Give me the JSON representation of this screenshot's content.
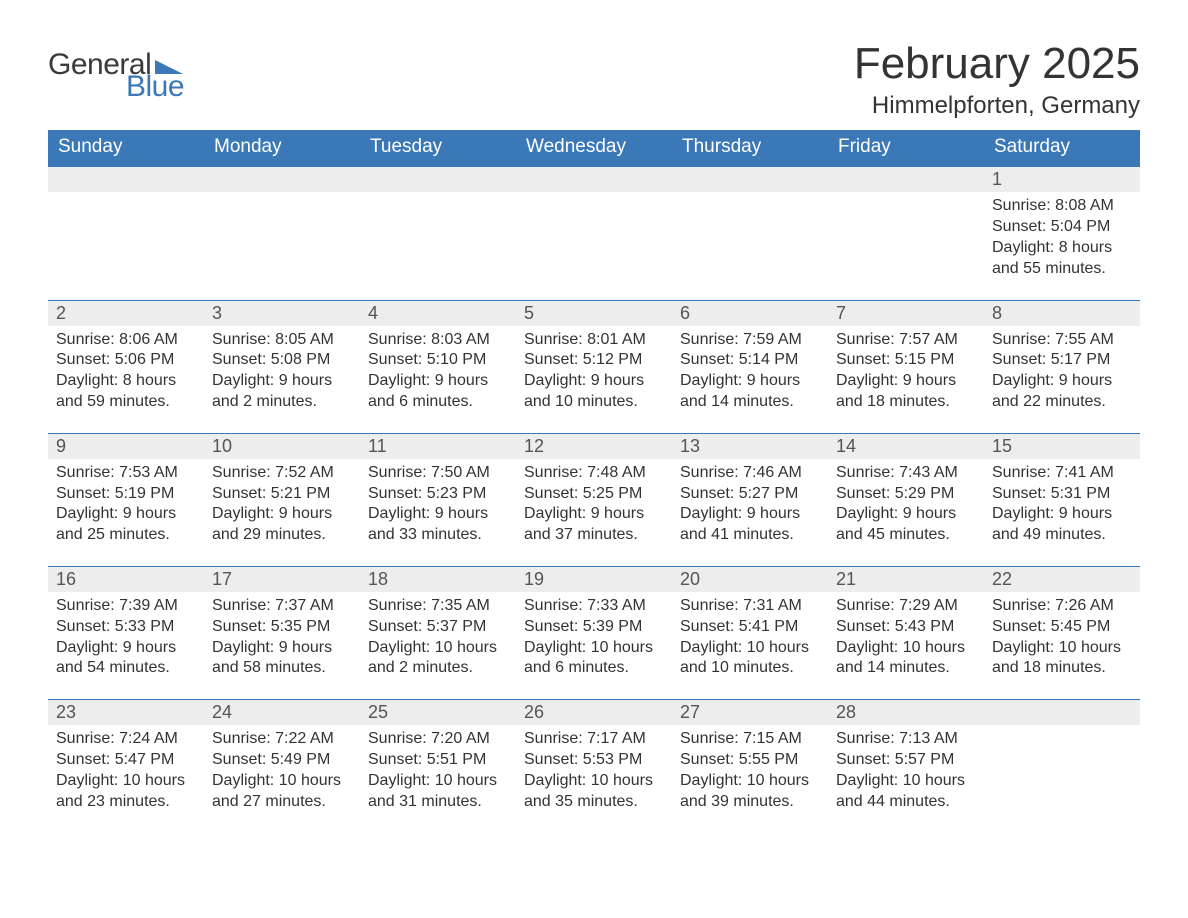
{
  "brand": {
    "word1": "General",
    "word2": "Blue",
    "word1_color": "#3a3a3a",
    "word2_color": "#3b78b8",
    "triangle_color": "#3b78b8"
  },
  "title": "February 2025",
  "location": "Himmelpforten, Germany",
  "colors": {
    "header_bg": "#3b78b8",
    "header_text": "#ffffff",
    "daynum_bg": "#ededed",
    "row_border": "#3b78b8",
    "body_text": "#333333",
    "page_bg": "#ffffff"
  },
  "fonts": {
    "title_size_pt": 33,
    "location_size_pt": 18,
    "weekday_size_pt": 14,
    "daynum_size_pt": 14,
    "body_size_pt": 12
  },
  "layout": {
    "columns": 7,
    "rows": 5,
    "first_day_column_index": 6
  },
  "weekdays": [
    "Sunday",
    "Monday",
    "Tuesday",
    "Wednesday",
    "Thursday",
    "Friday",
    "Saturday"
  ],
  "weeks": [
    [
      null,
      null,
      null,
      null,
      null,
      null,
      {
        "n": "1",
        "sunrise": "Sunrise: 8:08 AM",
        "sunset": "Sunset: 5:04 PM",
        "daylight": "Daylight: 8 hours and 55 minutes."
      }
    ],
    [
      {
        "n": "2",
        "sunrise": "Sunrise: 8:06 AM",
        "sunset": "Sunset: 5:06 PM",
        "daylight": "Daylight: 8 hours and 59 minutes."
      },
      {
        "n": "3",
        "sunrise": "Sunrise: 8:05 AM",
        "sunset": "Sunset: 5:08 PM",
        "daylight": "Daylight: 9 hours and 2 minutes."
      },
      {
        "n": "4",
        "sunrise": "Sunrise: 8:03 AM",
        "sunset": "Sunset: 5:10 PM",
        "daylight": "Daylight: 9 hours and 6 minutes."
      },
      {
        "n": "5",
        "sunrise": "Sunrise: 8:01 AM",
        "sunset": "Sunset: 5:12 PM",
        "daylight": "Daylight: 9 hours and 10 minutes."
      },
      {
        "n": "6",
        "sunrise": "Sunrise: 7:59 AM",
        "sunset": "Sunset: 5:14 PM",
        "daylight": "Daylight: 9 hours and 14 minutes."
      },
      {
        "n": "7",
        "sunrise": "Sunrise: 7:57 AM",
        "sunset": "Sunset: 5:15 PM",
        "daylight": "Daylight: 9 hours and 18 minutes."
      },
      {
        "n": "8",
        "sunrise": "Sunrise: 7:55 AM",
        "sunset": "Sunset: 5:17 PM",
        "daylight": "Daylight: 9 hours and 22 minutes."
      }
    ],
    [
      {
        "n": "9",
        "sunrise": "Sunrise: 7:53 AM",
        "sunset": "Sunset: 5:19 PM",
        "daylight": "Daylight: 9 hours and 25 minutes."
      },
      {
        "n": "10",
        "sunrise": "Sunrise: 7:52 AM",
        "sunset": "Sunset: 5:21 PM",
        "daylight": "Daylight: 9 hours and 29 minutes."
      },
      {
        "n": "11",
        "sunrise": "Sunrise: 7:50 AM",
        "sunset": "Sunset: 5:23 PM",
        "daylight": "Daylight: 9 hours and 33 minutes."
      },
      {
        "n": "12",
        "sunrise": "Sunrise: 7:48 AM",
        "sunset": "Sunset: 5:25 PM",
        "daylight": "Daylight: 9 hours and 37 minutes."
      },
      {
        "n": "13",
        "sunrise": "Sunrise: 7:46 AM",
        "sunset": "Sunset: 5:27 PM",
        "daylight": "Daylight: 9 hours and 41 minutes."
      },
      {
        "n": "14",
        "sunrise": "Sunrise: 7:43 AM",
        "sunset": "Sunset: 5:29 PM",
        "daylight": "Daylight: 9 hours and 45 minutes."
      },
      {
        "n": "15",
        "sunrise": "Sunrise: 7:41 AM",
        "sunset": "Sunset: 5:31 PM",
        "daylight": "Daylight: 9 hours and 49 minutes."
      }
    ],
    [
      {
        "n": "16",
        "sunrise": "Sunrise: 7:39 AM",
        "sunset": "Sunset: 5:33 PM",
        "daylight": "Daylight: 9 hours and 54 minutes."
      },
      {
        "n": "17",
        "sunrise": "Sunrise: 7:37 AM",
        "sunset": "Sunset: 5:35 PM",
        "daylight": "Daylight: 9 hours and 58 minutes."
      },
      {
        "n": "18",
        "sunrise": "Sunrise: 7:35 AM",
        "sunset": "Sunset: 5:37 PM",
        "daylight": "Daylight: 10 hours and 2 minutes."
      },
      {
        "n": "19",
        "sunrise": "Sunrise: 7:33 AM",
        "sunset": "Sunset: 5:39 PM",
        "daylight": "Daylight: 10 hours and 6 minutes."
      },
      {
        "n": "20",
        "sunrise": "Sunrise: 7:31 AM",
        "sunset": "Sunset: 5:41 PM",
        "daylight": "Daylight: 10 hours and 10 minutes."
      },
      {
        "n": "21",
        "sunrise": "Sunrise: 7:29 AM",
        "sunset": "Sunset: 5:43 PM",
        "daylight": "Daylight: 10 hours and 14 minutes."
      },
      {
        "n": "22",
        "sunrise": "Sunrise: 7:26 AM",
        "sunset": "Sunset: 5:45 PM",
        "daylight": "Daylight: 10 hours and 18 minutes."
      }
    ],
    [
      {
        "n": "23",
        "sunrise": "Sunrise: 7:24 AM",
        "sunset": "Sunset: 5:47 PM",
        "daylight": "Daylight: 10 hours and 23 minutes."
      },
      {
        "n": "24",
        "sunrise": "Sunrise: 7:22 AM",
        "sunset": "Sunset: 5:49 PM",
        "daylight": "Daylight: 10 hours and 27 minutes."
      },
      {
        "n": "25",
        "sunrise": "Sunrise: 7:20 AM",
        "sunset": "Sunset: 5:51 PM",
        "daylight": "Daylight: 10 hours and 31 minutes."
      },
      {
        "n": "26",
        "sunrise": "Sunrise: 7:17 AM",
        "sunset": "Sunset: 5:53 PM",
        "daylight": "Daylight: 10 hours and 35 minutes."
      },
      {
        "n": "27",
        "sunrise": "Sunrise: 7:15 AM",
        "sunset": "Sunset: 5:55 PM",
        "daylight": "Daylight: 10 hours and 39 minutes."
      },
      {
        "n": "28",
        "sunrise": "Sunrise: 7:13 AM",
        "sunset": "Sunset: 5:57 PM",
        "daylight": "Daylight: 10 hours and 44 minutes."
      },
      null
    ]
  ]
}
